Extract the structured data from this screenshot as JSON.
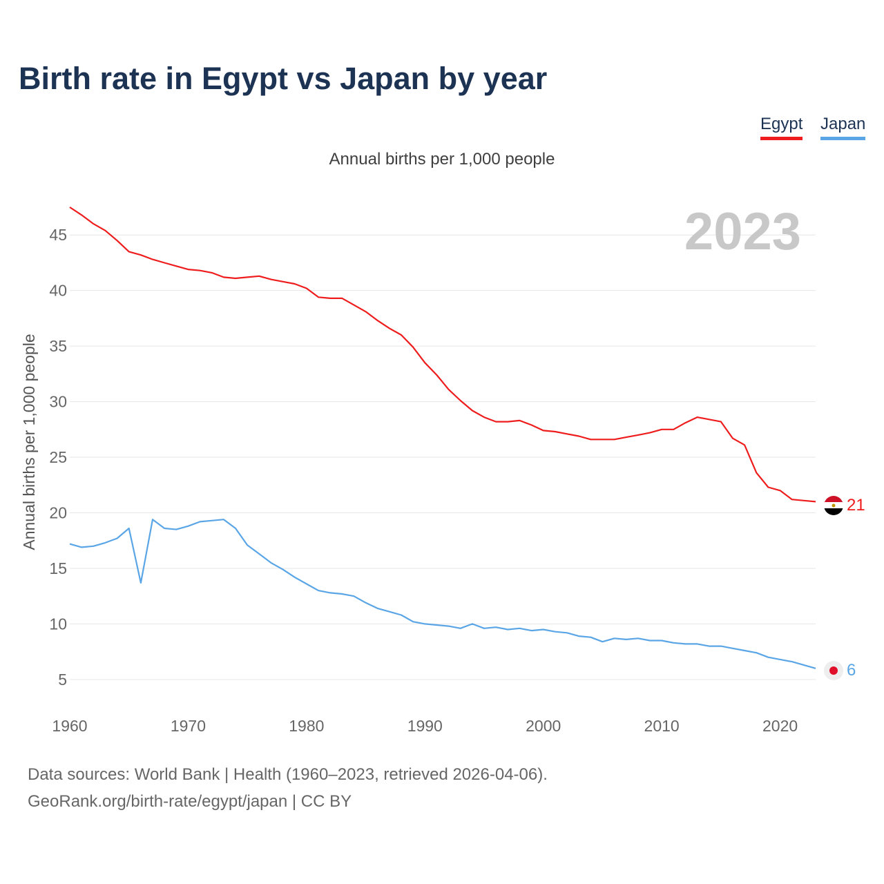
{
  "title": "Birth rate in Egypt vs Japan by year",
  "subtitle": "Annual births per 1,000 people",
  "legend": [
    {
      "name": "Egypt",
      "color": "#ee1c1c"
    },
    {
      "name": "Japan",
      "color": "#5aa5e6"
    }
  ],
  "year_watermark": "2023",
  "end_labels": {
    "egypt": "21",
    "japan": "6"
  },
  "sources": {
    "line1": "Data sources: World Bank | Health (1960–2023, retrieved 2026-04-06).",
    "line2": "GeoRank.org/birth-rate/egypt/japan | CC BY"
  },
  "colors": {
    "egypt": "#ee1c1c",
    "japan": "#5aa5e6",
    "title": "#1d3354",
    "grid": "#e6e6e6",
    "tick": "#666666"
  },
  "chart_data": {
    "type": "line",
    "title": "Birth rate in Egypt vs Japan by year",
    "xlabel": "",
    "ylabel": "Annual births per 1,000 people",
    "xlim": [
      1960,
      2023
    ],
    "ylim": [
      3.5,
      47.5
    ],
    "x_ticks": [
      1960,
      1970,
      1980,
      1990,
      2000,
      2010,
      2020
    ],
    "y_ticks": [
      5,
      10,
      15,
      20,
      25,
      30,
      35,
      40,
      45
    ],
    "grid": true,
    "legend_position": "top-right",
    "x": [
      1960,
      1961,
      1962,
      1963,
      1964,
      1965,
      1966,
      1967,
      1968,
      1969,
      1970,
      1971,
      1972,
      1973,
      1974,
      1975,
      1976,
      1977,
      1978,
      1979,
      1980,
      1981,
      1982,
      1983,
      1984,
      1985,
      1986,
      1987,
      1988,
      1989,
      1990,
      1991,
      1992,
      1993,
      1994,
      1995,
      1996,
      1997,
      1998,
      1999,
      2000,
      2001,
      2002,
      2003,
      2004,
      2005,
      2006,
      2007,
      2008,
      2009,
      2010,
      2011,
      2012,
      2013,
      2014,
      2015,
      2016,
      2017,
      2018,
      2019,
      2020,
      2021,
      2022,
      2023
    ],
    "series": [
      {
        "name": "Egypt",
        "values": [
          47.5,
          46.8,
          46.0,
          45.4,
          44.5,
          43.5,
          43.2,
          42.8,
          42.5,
          42.2,
          41.9,
          41.8,
          41.6,
          41.2,
          41.1,
          41.2,
          41.3,
          41.0,
          40.8,
          40.6,
          40.2,
          39.4,
          39.3,
          39.3,
          38.7,
          38.1,
          37.3,
          36.6,
          36.0,
          34.9,
          33.5,
          32.4,
          31.1,
          30.1,
          29.2,
          28.6,
          28.2,
          28.2,
          28.3,
          27.9,
          27.4,
          27.3,
          27.1,
          26.9,
          26.6,
          26.6,
          26.6,
          26.8,
          27.0,
          27.2,
          27.5,
          27.5,
          28.1,
          28.6,
          28.4,
          28.2,
          26.7,
          26.1,
          23.6,
          22.3,
          22.0,
          21.2,
          21.1,
          21.0
        ]
      },
      {
        "name": "Japan",
        "values": [
          17.2,
          16.9,
          17.0,
          17.3,
          17.7,
          18.6,
          13.7,
          19.4,
          18.6,
          18.5,
          18.8,
          19.2,
          19.3,
          19.4,
          18.6,
          17.1,
          16.3,
          15.5,
          14.9,
          14.2,
          13.6,
          13.0,
          12.8,
          12.7,
          12.5,
          11.9,
          11.4,
          11.1,
          10.8,
          10.2,
          10.0,
          9.9,
          9.8,
          9.6,
          10.0,
          9.6,
          9.7,
          9.5,
          9.6,
          9.4,
          9.5,
          9.3,
          9.2,
          8.9,
          8.8,
          8.4,
          8.7,
          8.6,
          8.7,
          8.5,
          8.5,
          8.3,
          8.2,
          8.2,
          8.0,
          8.0,
          7.8,
          7.6,
          7.4,
          7.0,
          6.8,
          6.6,
          6.3,
          6.0
        ]
      }
    ]
  }
}
